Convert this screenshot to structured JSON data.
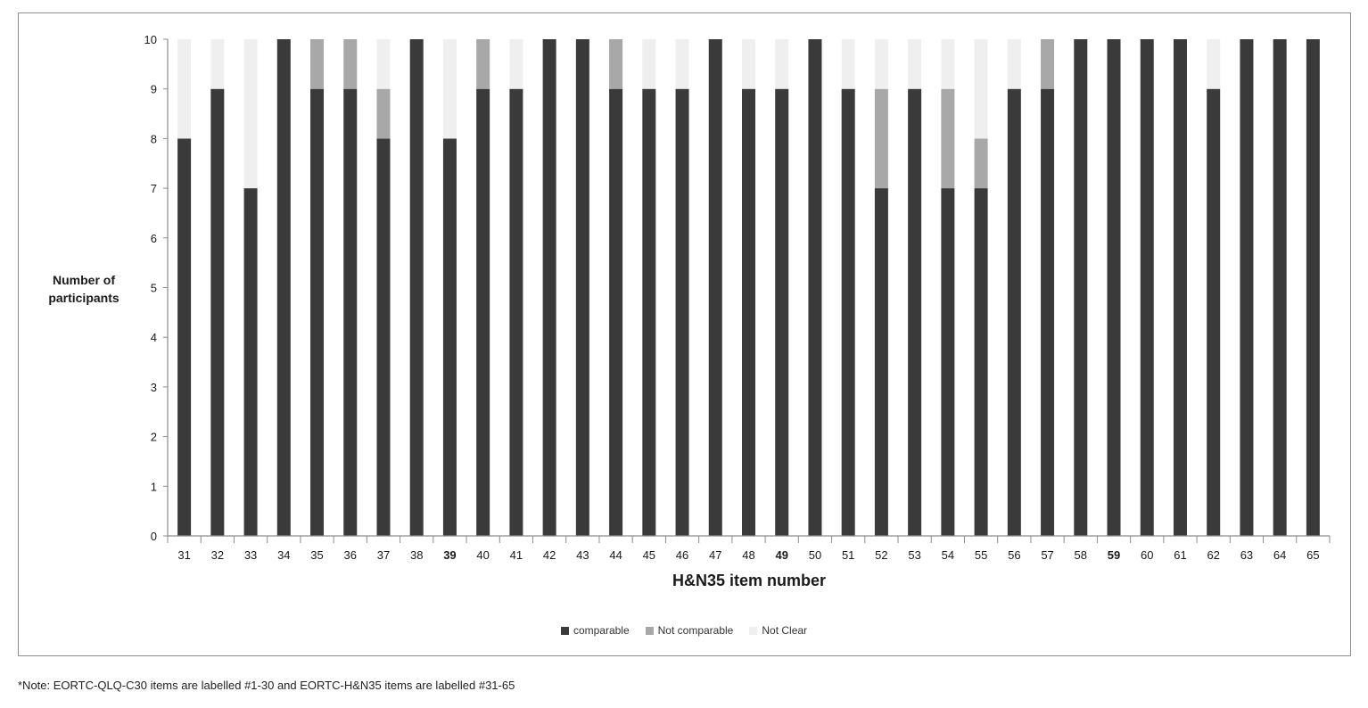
{
  "chart_data": {
    "type": "bar",
    "stacked": true,
    "title": "",
    "xlabel": "H&N35 item number",
    "ylabel": "Number of participants",
    "ylim": [
      0,
      10
    ],
    "yticks": [
      0,
      1,
      2,
      3,
      4,
      5,
      6,
      7,
      8,
      9,
      10
    ],
    "grid": false,
    "legend_position": "bottom",
    "categories": [
      "31",
      "32",
      "33",
      "34",
      "35",
      "36",
      "37",
      "38",
      "39",
      "40",
      "41",
      "42",
      "43",
      "44",
      "45",
      "46",
      "47",
      "48",
      "49",
      "50",
      "51",
      "52",
      "53",
      "54",
      "55",
      "56",
      "57",
      "58",
      "59",
      "60",
      "61",
      "62",
      "63",
      "64",
      "65"
    ],
    "bold_categories": [
      "39",
      "49",
      "59"
    ],
    "series": [
      {
        "name": "comparable",
        "color": "#3a3a3a",
        "values": [
          8,
          9,
          7,
          10,
          9,
          9,
          8,
          10,
          8,
          9,
          9,
          10,
          10,
          9,
          9,
          9,
          10,
          9,
          9,
          10,
          9,
          7,
          9,
          7,
          7,
          9,
          9,
          10,
          10,
          10,
          10,
          9,
          10,
          10,
          10
        ]
      },
      {
        "name": "Not comparable",
        "color": "#a8a8a8",
        "values": [
          0,
          0,
          0,
          0,
          1,
          1,
          1,
          0,
          0,
          1,
          0,
          0,
          0,
          1,
          0,
          0,
          0,
          0,
          0,
          0,
          0,
          2,
          0,
          2,
          1,
          0,
          1,
          0,
          0,
          0,
          0,
          0,
          0,
          0,
          0
        ]
      },
      {
        "name": "Not Clear",
        "color": "#efefef",
        "values": [
          2,
          1,
          3,
          0,
          0,
          0,
          1,
          0,
          2,
          0,
          1,
          0,
          0,
          0,
          1,
          1,
          0,
          1,
          1,
          0,
          1,
          1,
          1,
          1,
          2,
          1,
          0,
          0,
          0,
          0,
          0,
          1,
          0,
          0,
          0
        ]
      }
    ]
  },
  "ylabel_lines": [
    "Number of",
    "participants"
  ],
  "footnote": "*Note: EORTC-QLQ-C30 items are labelled #1-30 and EORTC-H&N35 items are labelled #31-65"
}
